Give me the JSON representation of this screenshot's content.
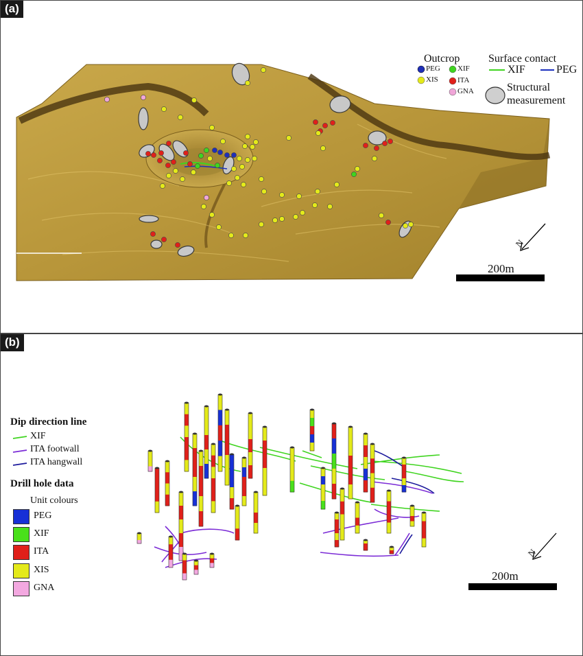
{
  "panel_a": {
    "label": "(a)",
    "legend": {
      "outcrop_title": "Outcrop",
      "outcrop_items": [
        {
          "name": "PEG",
          "color": "#1f2fb8"
        },
        {
          "name": "XIF",
          "color": "#3fd41f"
        },
        {
          "name": "XIS",
          "color": "#e4ea1a"
        },
        {
          "name": "ITA",
          "color": "#e0201a"
        },
        {
          "name": "GNA",
          "color": "#f0a6d8"
        }
      ],
      "contact_title": "Surface contact",
      "contact_items": [
        {
          "name": "XIF",
          "color": "#3fd41f"
        },
        {
          "name": "PEG",
          "color": "#1a2fbe"
        }
      ],
      "structural_line1": "Structural",
      "structural_line2": "measurement"
    },
    "north": "N",
    "scale": "200m"
  },
  "panel_b": {
    "label": "(b)",
    "dip_title": "Dip direction line",
    "dip_items": [
      {
        "name": "XIF",
        "color": "#3fd41f"
      },
      {
        "name": "ITA footwall",
        "color": "#7b2bd6"
      },
      {
        "name": "ITA hangwall",
        "color": "#1c1a9c"
      }
    ],
    "drill_title": "Drill hole data",
    "unit_title": "Unit colours",
    "units": [
      {
        "name": "PEG",
        "color": "#1730d6"
      },
      {
        "name": "XIF",
        "color": "#49e01a"
      },
      {
        "name": "ITA",
        "color": "#e0201a"
      },
      {
        "name": "XIS",
        "color": "#e4ea1a"
      },
      {
        "name": "GNA",
        "color": "#f3a8e0"
      }
    ],
    "north": "N",
    "scale": "200m"
  }
}
